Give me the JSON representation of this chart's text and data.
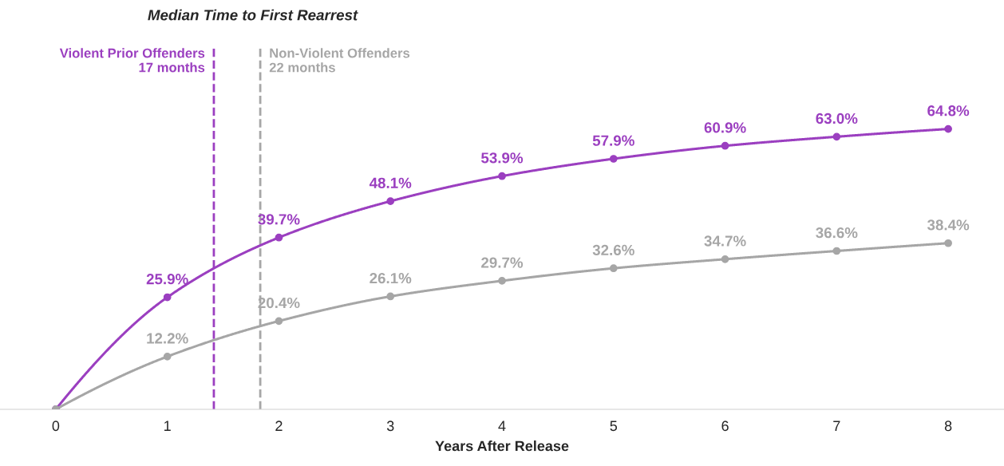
{
  "chart_data": {
    "type": "line",
    "title": "Median Time to First Rearrest",
    "xlabel": "Years After Release",
    "x": [
      0,
      1,
      2,
      3,
      4,
      5,
      6,
      7,
      8
    ],
    "series": [
      {
        "name": null,
        "color": "#9b3fc0",
        "values": [
          0,
          25.9,
          39.7,
          48.1,
          53.9,
          57.9,
          60.9,
          63.0,
          64.8
        ],
        "value_labels": [
          null,
          "25.9%",
          "39.7%",
          "48.1%",
          "53.9%",
          "57.9%",
          "60.9%",
          "63.0%",
          "64.8%"
        ]
      },
      {
        "name": null,
        "color": "#a6a6a6",
        "values": [
          0,
          12.2,
          20.4,
          26.1,
          29.7,
          32.6,
          34.7,
          36.6,
          38.4
        ],
        "value_labels": [
          null,
          "12.2%",
          "20.4%",
          "26.1%",
          "29.7%",
          "32.6%",
          "34.7%",
          "36.6%",
          "38.4%"
        ]
      }
    ],
    "xlim": [
      -0.5,
      8.5
    ],
    "xticks": [
      0,
      1,
      2,
      3,
      4,
      5,
      6,
      7,
      8
    ],
    "ylim": [
      0,
      84
    ],
    "ref_lines": [
      {
        "axis": "x",
        "value": 1.417,
        "label": "Violent Prior Offenders\n17 months",
        "color": "#9b3fc0",
        "line_style": "dashed"
      },
      {
        "axis": "x",
        "value": 1.833,
        "label": "Non-Violent Offenders\n22 months",
        "color": "#a6a6a6",
        "line_style": "dashed"
      }
    ],
    "marker": "circle",
    "line_style": "solid",
    "grid": false,
    "legend": false,
    "tick_labels": "x"
  }
}
